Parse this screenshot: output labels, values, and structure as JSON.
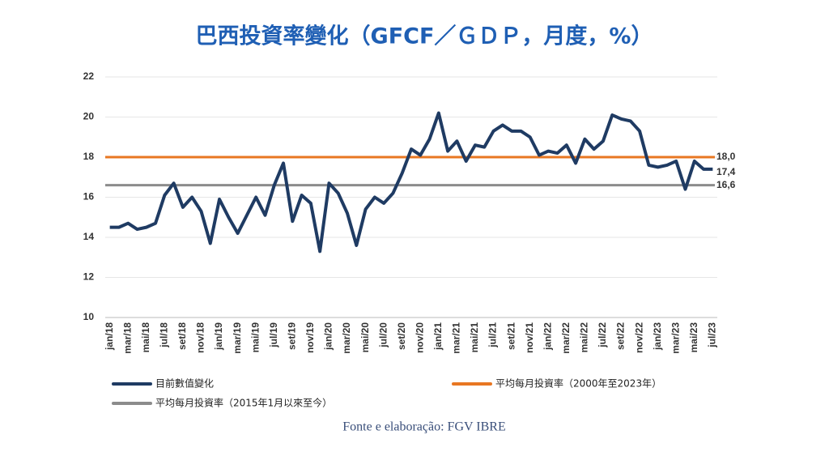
{
  "chart_data": {
    "type": "line",
    "title": "巴西投資率變化（GFCF／ＧＤＰ，月度，%）",
    "source": "Fonte e elaboração: FGV IBRE",
    "categories": [
      "jan/18",
      null,
      "mar/18",
      null,
      "mai/18",
      null,
      "jul/18",
      null,
      "set/18",
      null,
      "nov/18",
      null,
      "jan/19",
      null,
      "mar/19",
      null,
      "mai/19",
      null,
      "jul/19",
      null,
      "set/19",
      null,
      "nov/19",
      null,
      "jan/20",
      null,
      "mar/20",
      null,
      "mai/20",
      null,
      "jul/20",
      null,
      "set/20",
      null,
      "nov/20",
      null,
      "jan/21",
      null,
      "mar/21",
      null,
      "mai/21",
      null,
      "jul/21",
      null,
      "set/21",
      null,
      "nov/21",
      null,
      "jan/22",
      null,
      "mar/22",
      null,
      "mai/22",
      null,
      "jul/22",
      null,
      "set/22",
      null,
      "nov/22",
      null,
      "jan/23",
      null,
      "mar/23",
      null,
      "mai/23",
      null,
      "jul/23"
    ],
    "series": [
      {
        "name": "目前數值變化",
        "color": "#1f3b63",
        "end_label": "17,4",
        "values": [
          14.5,
          14.5,
          14.7,
          14.4,
          14.5,
          14.7,
          16.1,
          16.7,
          15.5,
          16.0,
          15.3,
          13.7,
          15.9,
          15.0,
          14.2,
          15.1,
          16.0,
          15.1,
          16.6,
          17.7,
          14.8,
          16.1,
          15.7,
          13.3,
          16.7,
          16.2,
          15.2,
          13.6,
          15.4,
          16.0,
          15.7,
          16.2,
          17.2,
          18.4,
          18.1,
          18.9,
          20.2,
          18.3,
          18.8,
          17.8,
          18.6,
          18.5,
          19.3,
          19.6,
          19.3,
          19.3,
          19.0,
          18.1,
          18.3,
          18.2,
          18.6,
          17.7,
          18.9,
          18.4,
          18.8,
          20.1,
          19.9,
          19.8,
          19.3,
          17.6,
          17.5,
          17.6,
          17.8,
          16.4,
          17.8,
          17.4,
          17.4
        ]
      }
    ],
    "reference_lines": [
      {
        "name": "平均每月投資率（2000年至2023年）",
        "value": 18,
        "value_label": "18,0",
        "color": "#e87722"
      },
      {
        "name": "平均每月投資率（2015年1月以來至今）",
        "value": 16.6,
        "value_label": "16,6",
        "color": "#8c8c8c"
      }
    ],
    "ylim": [
      10,
      22
    ],
    "yticks": [
      10,
      12,
      14,
      16,
      18,
      20,
      22
    ],
    "grid": true
  }
}
